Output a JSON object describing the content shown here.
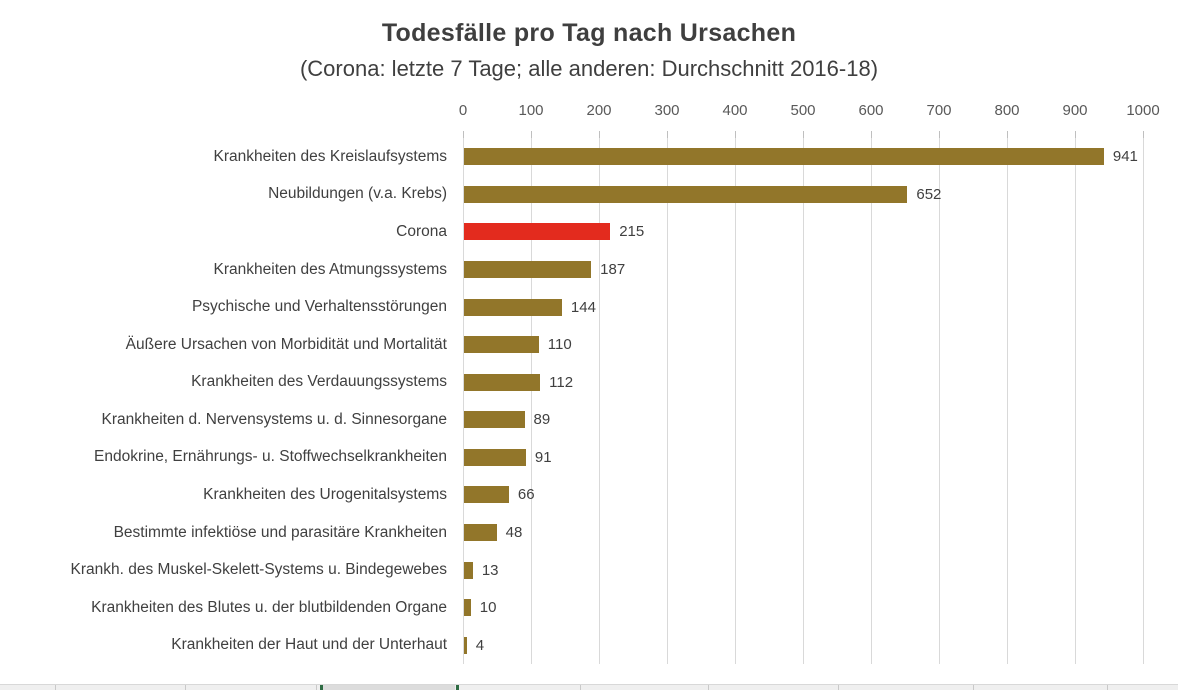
{
  "chart_data": {
    "type": "bar",
    "orientation": "horizontal",
    "title": "Todesfälle pro Tag nach Ursachen",
    "subtitle": "(Corona: letzte 7 Tage; alle anderen: Durchschnitt 2016-18)",
    "categories": [
      "Krankheiten des Kreislaufsystems",
      "Neubildungen (v.a. Krebs)",
      "Corona",
      "Krankheiten des Atmungssystems",
      "Psychische und Verhaltensstörungen",
      "Äußere Ursachen von Morbidität und Mortalität",
      "Krankheiten des Verdauungssystems",
      "Krankheiten d. Nervensystems u. d. Sinnesorgane",
      "Endokrine, Ernährungs- u. Stoffwechselkrankheiten",
      "Krankheiten des Urogenitalsystems",
      "Bestimmte infektiöse und parasitäre Krankheiten",
      "Krankh. des Muskel-Skelett-Systems u. Bindegewebes",
      "Krankheiten des Blutes u. der blutbildenden Organe",
      "Krankheiten der Haut und der Unterhaut"
    ],
    "values": [
      941,
      652,
      215,
      187,
      144,
      110,
      112,
      89,
      91,
      66,
      48,
      13,
      10,
      4
    ],
    "highlight_index": 2,
    "bar_color": "#92762A",
    "highlight_color": "#E32B1E",
    "x_ticks": [
      0,
      100,
      200,
      300,
      400,
      500,
      600,
      700,
      800,
      900,
      1000
    ],
    "xlim": [
      0,
      1000
    ],
    "grid": true,
    "gridline_color": "#D9D9D9",
    "axis_tick_color": "#595959",
    "text_color": "#404040",
    "legend": "none",
    "value_labels_shown": true
  }
}
